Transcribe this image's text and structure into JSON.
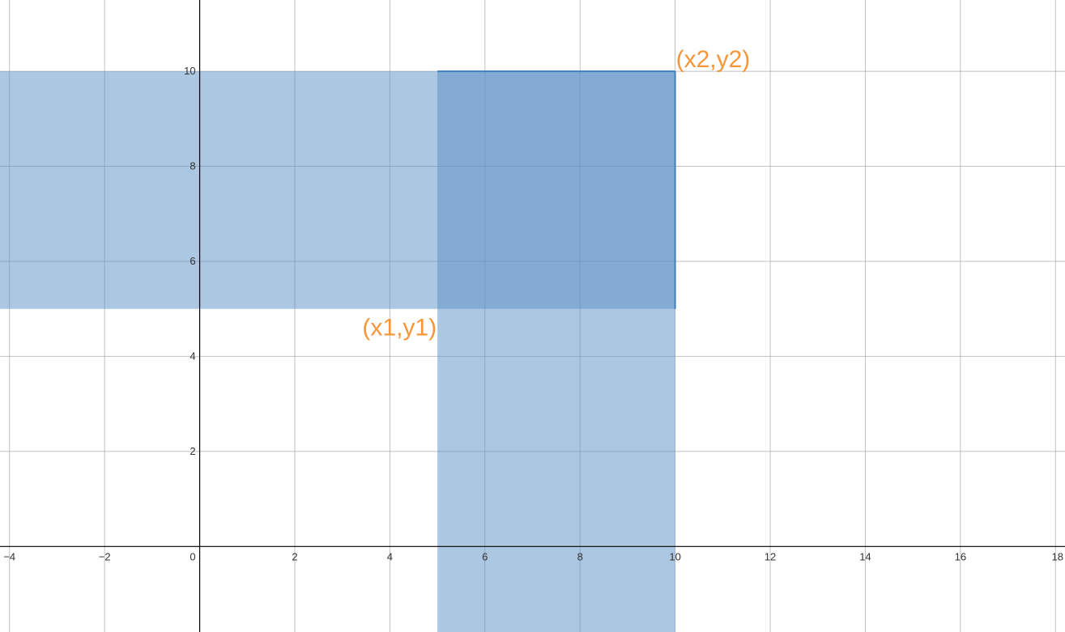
{
  "chart_data": {
    "type": "area",
    "title": "",
    "xlabel": "",
    "ylabel": "",
    "xlim": [
      -4.2,
      18.2
    ],
    "ylim": [
      -1.8,
      11.5
    ],
    "grid": true,
    "x_ticks": [
      -4,
      -2,
      0,
      2,
      4,
      6,
      8,
      10,
      12,
      14,
      16,
      18
    ],
    "y_ticks": [
      2,
      4,
      6,
      8,
      10
    ],
    "origin_label": "0",
    "regions": [
      {
        "x_range": [
          -4.2,
          10
        ],
        "y_range": [
          5,
          10
        ],
        "color": "#5a8fc6",
        "opacity": 0.5
      },
      {
        "x_range": [
          5,
          10
        ],
        "y_range": [
          -1.8,
          10
        ],
        "color": "#5a8fc6",
        "opacity": 0.5
      }
    ],
    "highlight_edges": [
      {
        "from": [
          5,
          10
        ],
        "to": [
          10,
          10
        ],
        "color": "#3f7fc1"
      },
      {
        "from": [
          10,
          10
        ],
        "to": [
          10,
          5
        ],
        "color": "#3f7fc1"
      }
    ],
    "annotations": [
      {
        "text": "(x1,y1)",
        "x": 5,
        "y": 5,
        "anchor": "bottom-left",
        "color": "#f59638"
      },
      {
        "text": "(x2,y2)",
        "x": 10,
        "y": 10,
        "anchor": "top-right",
        "color": "#f59638"
      }
    ]
  }
}
